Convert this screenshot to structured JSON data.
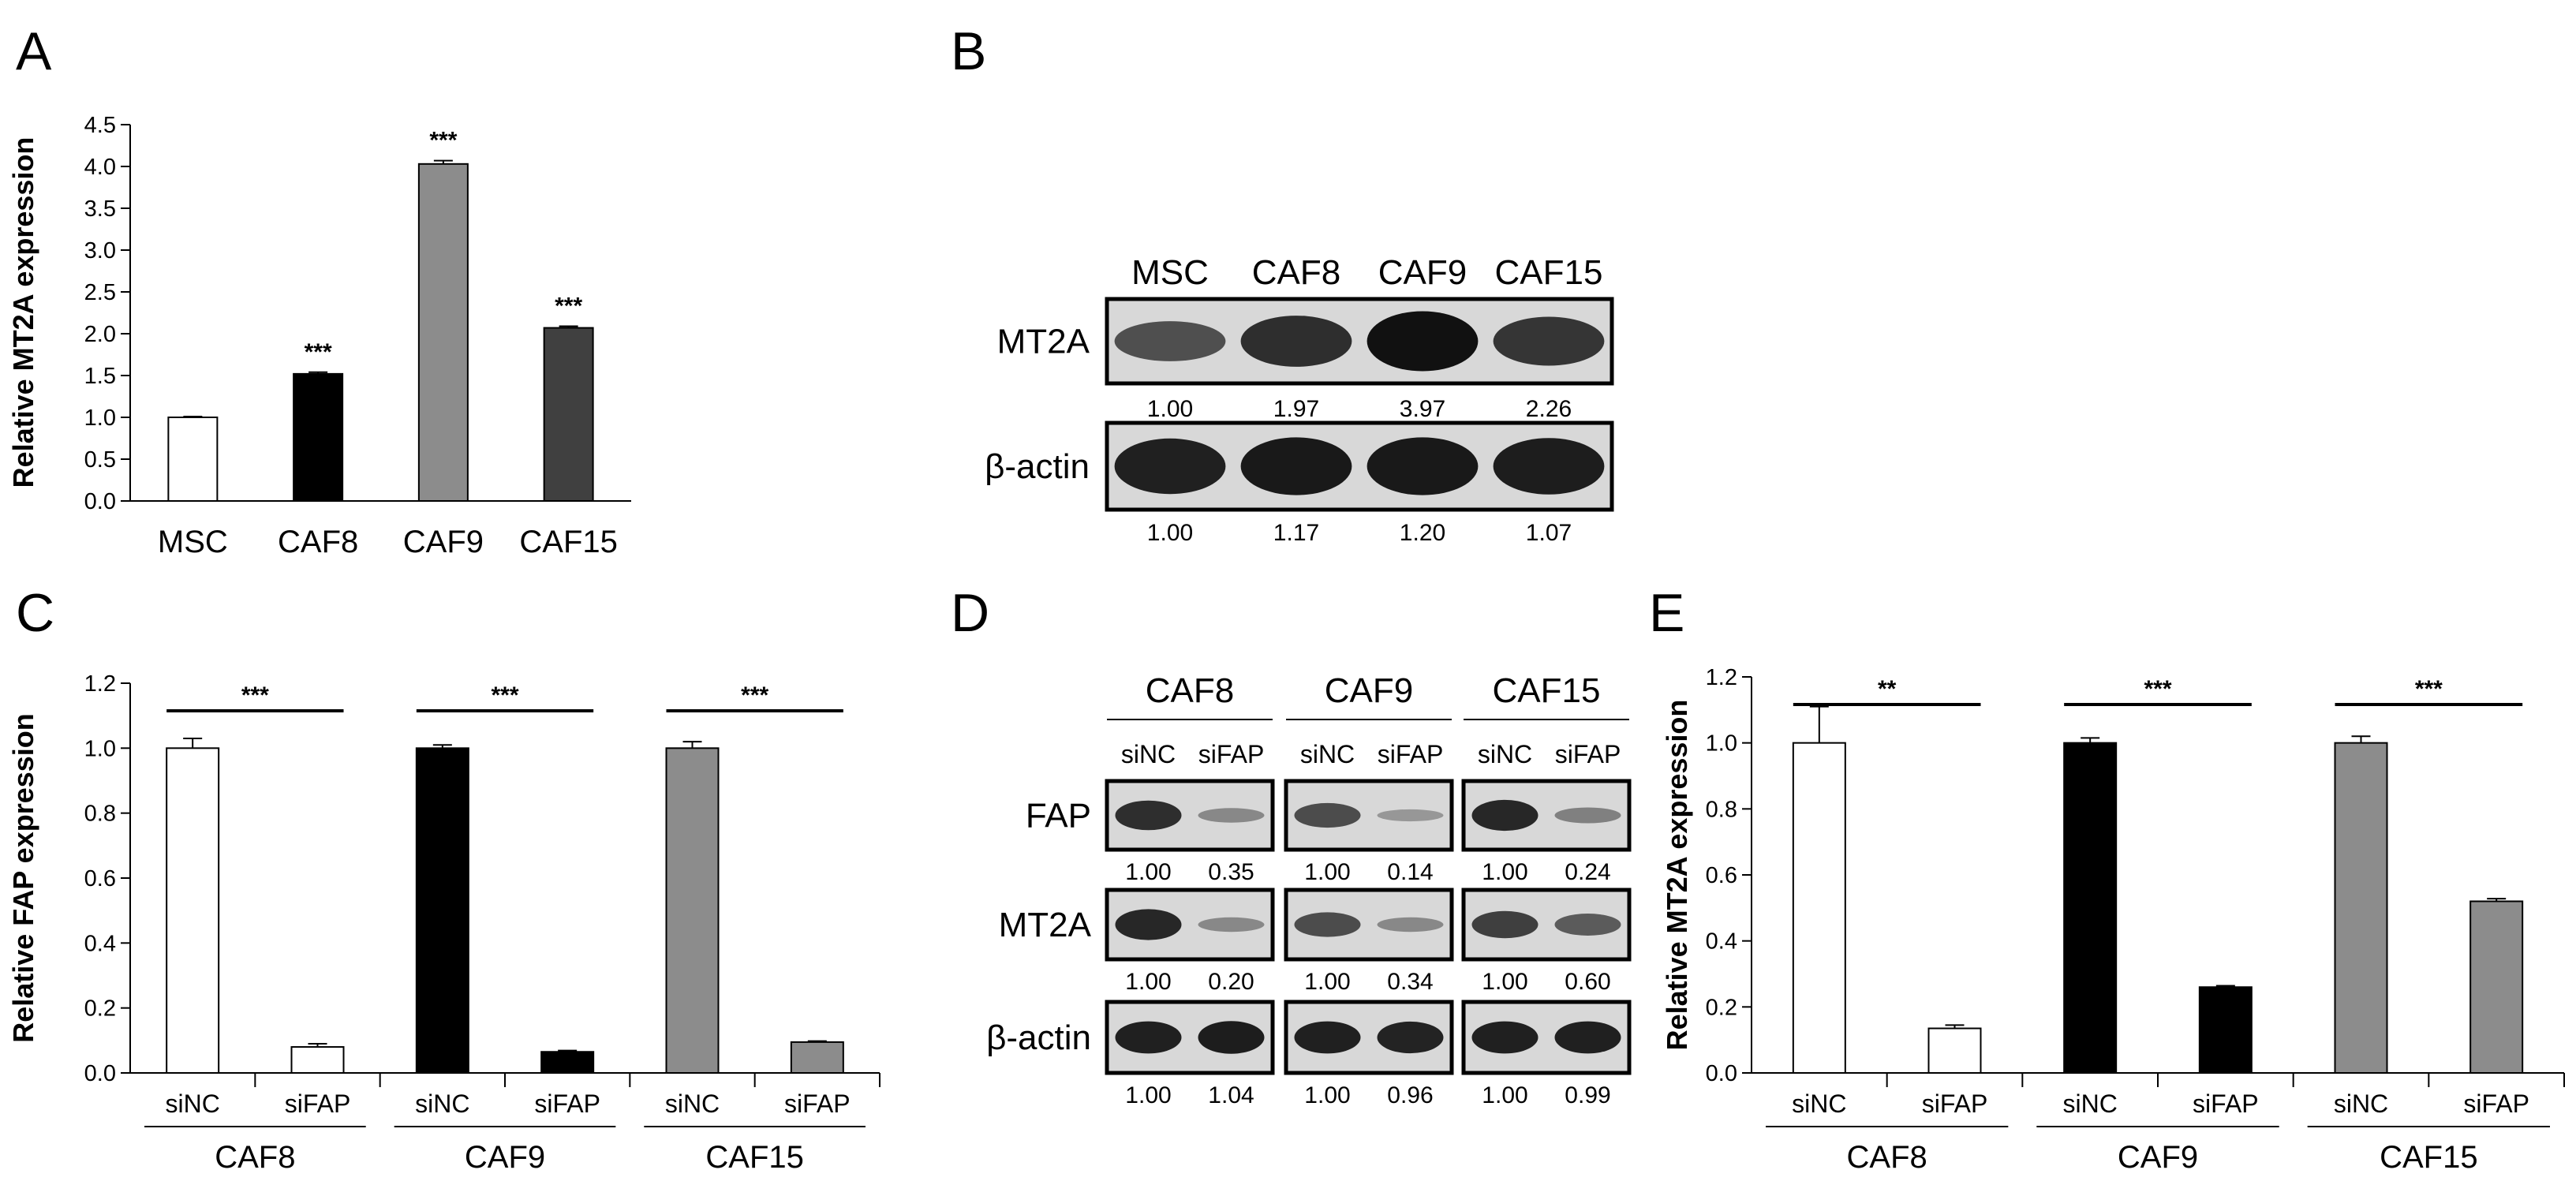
{
  "chart_data": [
    {
      "panel": "A",
      "type": "bar",
      "ylabel": "Relative MT2A expression",
      "ylim": [
        0,
        4.5
      ],
      "yticks": [
        "0.0",
        "0.5",
        "1.0",
        "1.5",
        "2.0",
        "2.5",
        "3.0",
        "3.5",
        "4.0",
        "4.5"
      ],
      "categories": [
        "MSC",
        "CAF8",
        "CAF9",
        "CAF15"
      ],
      "values": [
        1.0,
        1.52,
        4.03,
        2.07
      ],
      "errors": [
        0.01,
        0.02,
        0.04,
        0.02
      ],
      "colors": [
        "#ffffff",
        "#000000",
        "#8c8c8c",
        "#404040"
      ],
      "significance": [
        "",
        "***",
        "***",
        "***"
      ]
    },
    {
      "panel": "B",
      "type": "blot",
      "lanes": [
        "MSC",
        "CAF8",
        "CAF9",
        "CAF15"
      ],
      "rows": [
        {
          "label": "MT2A",
          "values": [
            "1.00",
            "1.97",
            "3.97",
            "2.26"
          ],
          "intensities": [
            0.55,
            0.8,
            1.0,
            0.75
          ]
        },
        {
          "label": "β-actin",
          "values": [
            "1.00",
            "1.17",
            "1.20",
            "1.07"
          ],
          "intensities": [
            0.9,
            0.95,
            0.95,
            0.92
          ]
        }
      ]
    },
    {
      "panel": "C",
      "type": "bar",
      "ylabel": "Relative FAP expression",
      "ylim": [
        0,
        1.2
      ],
      "yticks": [
        "0.0",
        "0.2",
        "0.4",
        "0.6",
        "0.8",
        "1.0",
        "1.2"
      ],
      "groups": [
        {
          "name": "CAF8",
          "conditions": [
            "siNC",
            "siFAP"
          ],
          "values": [
            1.0,
            0.08
          ],
          "errors": [
            0.03,
            0.01
          ],
          "colors": [
            "#ffffff",
            "#ffffff"
          ],
          "significance": "***"
        },
        {
          "name": "CAF9",
          "conditions": [
            "siNC",
            "siFAP"
          ],
          "values": [
            1.0,
            0.065
          ],
          "errors": [
            0.01,
            0.004
          ],
          "colors": [
            "#000000",
            "#000000"
          ],
          "significance": "***"
        },
        {
          "name": "CAF15",
          "conditions": [
            "siNC",
            "siFAP"
          ],
          "values": [
            1.0,
            0.095
          ],
          "errors": [
            0.02,
            0.003
          ],
          "colors": [
            "#8c8c8c",
            "#8c8c8c"
          ],
          "significance": "***"
        }
      ]
    },
    {
      "panel": "D",
      "type": "blot",
      "groups": [
        "CAF8",
        "CAF9",
        "CAF15"
      ],
      "conditions": [
        "siNC",
        "siFAP"
      ],
      "rows": [
        {
          "label": "FAP",
          "values": [
            [
              "1.00",
              "0.35"
            ],
            [
              "1.00",
              "0.14"
            ],
            [
              "1.00",
              "0.24"
            ]
          ],
          "intensities": [
            [
              0.8,
              0.2
            ],
            [
              0.6,
              0.1
            ],
            [
              0.85,
              0.25
            ]
          ]
        },
        {
          "label": "MT2A",
          "values": [
            [
              "1.00",
              "0.20"
            ],
            [
              "1.00",
              "0.34"
            ],
            [
              "1.00",
              "0.60"
            ]
          ],
          "intensities": [
            [
              0.85,
              0.2
            ],
            [
              0.6,
              0.2
            ],
            [
              0.7,
              0.5
            ]
          ]
        },
        {
          "label": "β-actin",
          "values": [
            [
              "1.00",
              "1.04"
            ],
            [
              "1.00",
              "0.96"
            ],
            [
              "1.00",
              "0.99"
            ]
          ],
          "intensities": [
            [
              0.9,
              0.92
            ],
            [
              0.9,
              0.88
            ],
            [
              0.9,
              0.9
            ]
          ]
        }
      ]
    },
    {
      "panel": "E",
      "type": "bar",
      "ylabel": "Relative MT2A expression",
      "ylim": [
        0,
        1.2
      ],
      "yticks": [
        "0.0",
        "0.2",
        "0.4",
        "0.6",
        "0.8",
        "1.0",
        "1.2"
      ],
      "groups": [
        {
          "name": "CAF8",
          "conditions": [
            "siNC",
            "siFAP"
          ],
          "values": [
            1.0,
            0.135
          ],
          "errors": [
            0.11,
            0.01
          ],
          "colors": [
            "#ffffff",
            "#ffffff"
          ],
          "significance": "**"
        },
        {
          "name": "CAF9",
          "conditions": [
            "siNC",
            "siFAP"
          ],
          "values": [
            1.0,
            0.26
          ],
          "errors": [
            0.015,
            0.004
          ],
          "colors": [
            "#000000",
            "#000000"
          ],
          "significance": "***"
        },
        {
          "name": "CAF15",
          "conditions": [
            "siNC",
            "siFAP"
          ],
          "values": [
            1.0,
            0.52
          ],
          "errors": [
            0.02,
            0.008
          ],
          "colors": [
            "#8c8c8c",
            "#8c8c8c"
          ],
          "significance": "***"
        }
      ]
    }
  ]
}
